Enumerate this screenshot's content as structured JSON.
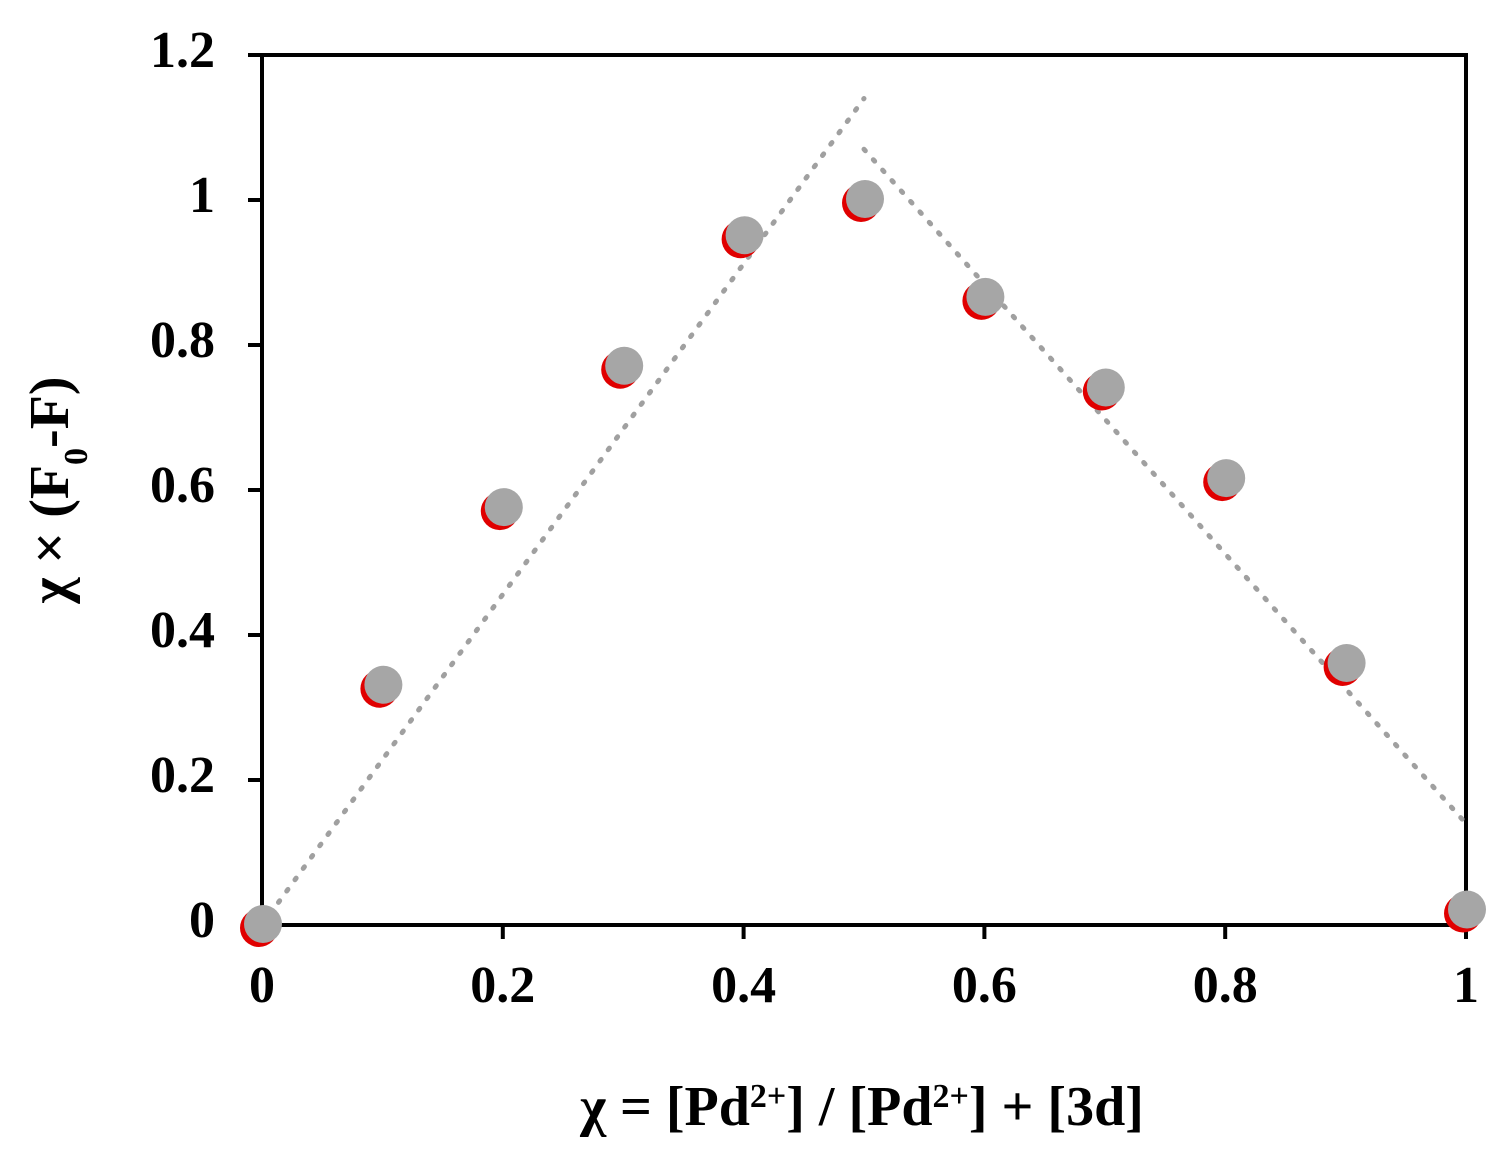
{
  "chart_data": {
    "type": "scatter",
    "x": [
      0,
      0.1,
      0.2,
      0.3,
      0.4,
      0.5,
      0.6,
      0.7,
      0.8,
      0.9,
      1
    ],
    "values": [
      0,
      0.33,
      0.575,
      0.77,
      0.95,
      1.0,
      0.865,
      0.74,
      0.615,
      0.36,
      0.02
    ],
    "color": "#a6a6a6",
    "edge_color": "#e00000",
    "trendlines": [
      {
        "x": [
          0,
          0.5
        ],
        "values": [
          0,
          1.14
        ]
      },
      {
        "x": [
          0.5,
          1
        ],
        "values": [
          1.07,
          0.14
        ]
      }
    ],
    "trendline_color": "#a0a0a0",
    "xlim": [
      0,
      1
    ],
    "ylim": [
      0,
      1.2
    ],
    "xticks": [
      0,
      0.2,
      0.4,
      0.6,
      0.8,
      1
    ],
    "yticks": [
      0,
      0.2,
      0.4,
      0.6,
      0.8,
      1,
      1.2
    ],
    "xlabel": {
      "parts": [
        {
          "text": "χ = [Pd"
        },
        {
          "text": "2+",
          "shift": "super"
        },
        {
          "text": "] / [Pd"
        },
        {
          "text": "2+",
          "shift": "super"
        },
        {
          "text": "] + [3d]"
        }
      ]
    },
    "ylabel": {
      "parts": [
        {
          "text": "χ × (F"
        },
        {
          "text": "0",
          "shift": "sub"
        },
        {
          "text": "-F)"
        }
      ]
    }
  }
}
